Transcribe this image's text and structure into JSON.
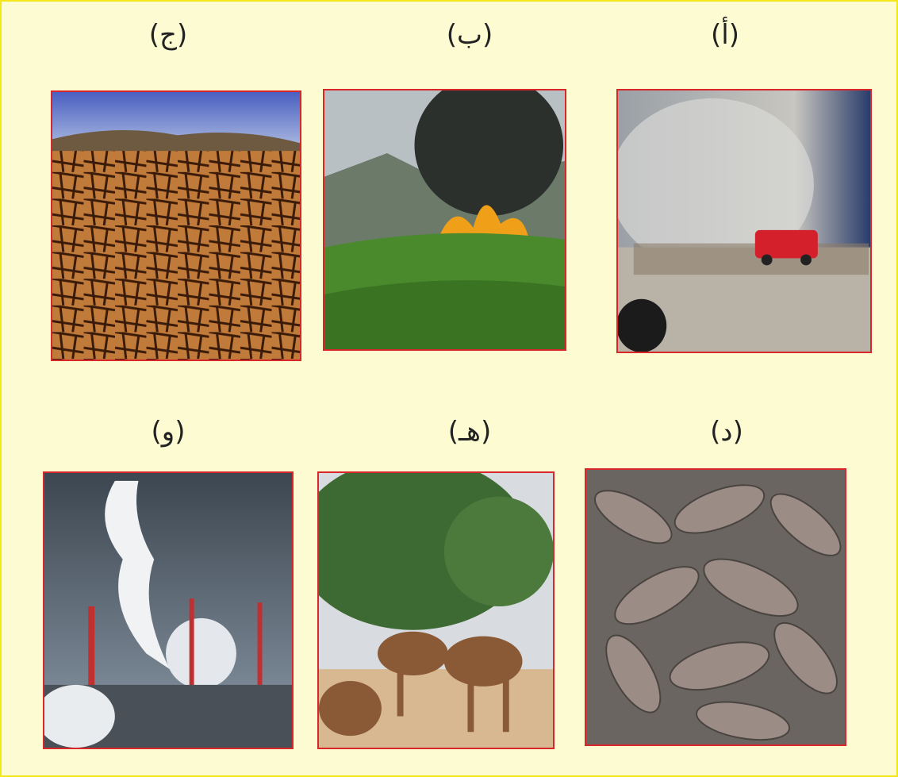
{
  "panels": [
    {
      "label": "(أ)"
    },
    {
      "label": "(ب)"
    },
    {
      "label": "(ج)"
    },
    {
      "label": "(د)"
    },
    {
      "label": "(هـ)"
    },
    {
      "label": "(و)"
    }
  ]
}
